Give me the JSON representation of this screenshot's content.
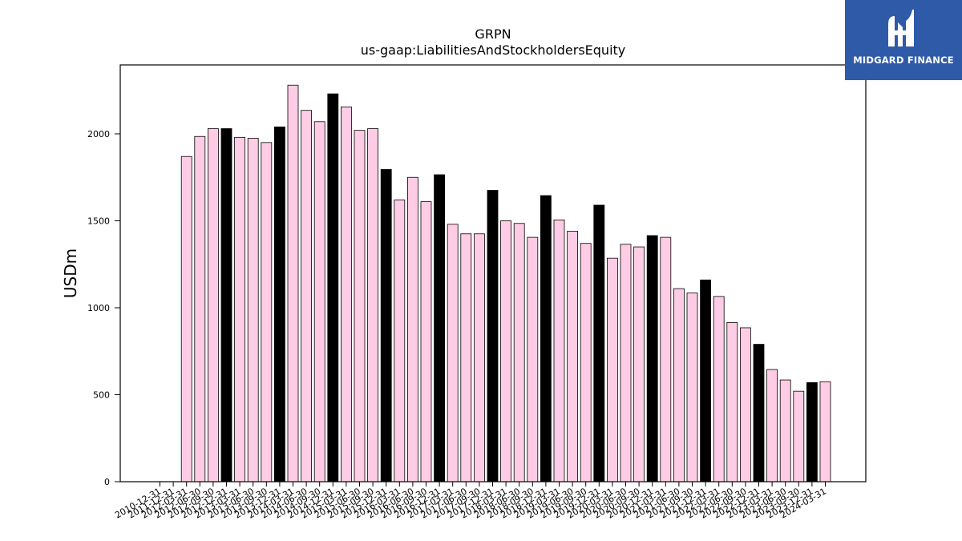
{
  "header": {
    "ticker": "GRPN",
    "metric": "us-gaap:LiabilitiesAndStockholdersEquity"
  },
  "logo": {
    "text": "MIDGARD FINANCE",
    "background": "#2f5aa8"
  },
  "chart_data": {
    "type": "bar",
    "title": "GRPN",
    "subtitle": "us-gaap:LiabilitiesAndStockholdersEquity",
    "xlabel": "",
    "ylabel": "USDm",
    "ylim": [
      0,
      2400
    ],
    "yticks": [
      0,
      500,
      1000,
      1500,
      2000
    ],
    "grid": false,
    "colors": {
      "quarter": "#ffcce6",
      "year_end": "#000000",
      "edge": "#000000"
    },
    "categories": [
      "2010-12-31",
      "2011-12-31",
      "2012-03-31",
      "2012-06-30",
      "2012-09-30",
      "2012-12-31",
      "2013-03-31",
      "2013-06-30",
      "2013-09-30",
      "2013-12-31",
      "2014-03-31",
      "2014-06-30",
      "2014-09-30",
      "2014-12-31",
      "2015-03-31",
      "2015-06-30",
      "2015-09-30",
      "2015-12-31",
      "2016-03-31",
      "2016-06-30",
      "2016-09-30",
      "2016-12-31",
      "2017-03-31",
      "2017-06-30",
      "2017-09-30",
      "2017-12-31",
      "2018-03-31",
      "2018-06-30",
      "2018-09-30",
      "2018-12-31",
      "2019-03-31",
      "2019-06-30",
      "2019-09-30",
      "2019-12-31",
      "2020-03-31",
      "2020-06-30",
      "2020-09-30",
      "2020-12-31",
      "2021-03-31",
      "2021-06-30",
      "2021-09-30",
      "2021-12-31",
      "2022-03-31",
      "2022-06-30",
      "2022-09-30",
      "2022-12-31",
      "2023-03-31",
      "2023-06-30",
      "2023-09-30",
      "2023-12-31",
      "2024-03-31"
    ],
    "visible_tick_labels": [
      "2010-12-31",
      "2011-12-31",
      "2012-03-31",
      "2012-06-30",
      "2012-09-30",
      "2012-12-31",
      "2013-03-31",
      "2013-06-30",
      "2013-09-30",
      "2013-12-31",
      "2014-03-31",
      "2014-06-30",
      "2014-09-30",
      "2014-12-31",
      "2015-03-31",
      "2015-06-30",
      "2015-09-30",
      "2015-12-31",
      "2016-03-31",
      "2016-06-30",
      "2016-09-30",
      "2016-12-31",
      "2017-03-31",
      "2017-06-30",
      "2017-09-30",
      "2017-12-31",
      "2018-03-31",
      "2018-06-30",
      "2018-09-30",
      "2018-12-31",
      "2019-03-31",
      "2019-06-30",
      "2019-09-30",
      "2019-12-31",
      "2020-03-31",
      "2020-06-30",
      "2020-09-30",
      "2020-12-31",
      "2021-03-31",
      "2021-06-30",
      "2021-09-30",
      "2021-12-31",
      "2022-03-31",
      "2022-06-30",
      "2022-09-30",
      "2022-12-31",
      "2023-03-31",
      "2023-06-30",
      "2023-09-30",
      "2023-12-31",
      "2024-03-31"
    ],
    "values": [
      0,
      0,
      1870,
      1985,
      2030,
      2030,
      1980,
      1975,
      1950,
      2040,
      2280,
      2135,
      2070,
      2230,
      2155,
      2020,
      2030,
      1795,
      1620,
      1750,
      1610,
      1765,
      1480,
      1425,
      1425,
      1675,
      1500,
      1485,
      1405,
      1645,
      1505,
      1440,
      1370,
      1590,
      1285,
      1365,
      1350,
      1415,
      1405,
      1110,
      1085,
      1160,
      1065,
      915,
      885,
      790,
      645,
      585,
      520,
      570,
      575
    ],
    "year_end": [
      false,
      false,
      false,
      false,
      false,
      true,
      false,
      false,
      false,
      true,
      false,
      false,
      false,
      true,
      false,
      false,
      false,
      true,
      false,
      false,
      false,
      true,
      false,
      false,
      false,
      true,
      false,
      false,
      false,
      true,
      false,
      false,
      false,
      true,
      false,
      false,
      false,
      true,
      false,
      false,
      false,
      true,
      false,
      false,
      false,
      true,
      false,
      false,
      false,
      true,
      false
    ]
  }
}
